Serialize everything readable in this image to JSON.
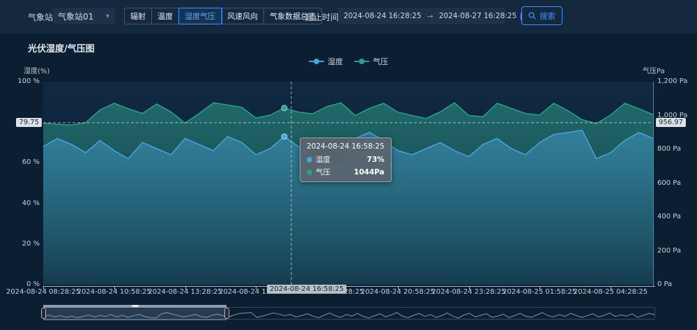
{
  "header": {
    "station_label": "气象站",
    "station_select": {
      "value": "气象站01"
    },
    "nav_buttons": [
      {
        "key": "radiation",
        "label": "辐射",
        "active": false
      },
      {
        "key": "temperature",
        "label": "温度",
        "active": false
      },
      {
        "key": "humidity-pressure",
        "label": "湿度气压",
        "active": true
      },
      {
        "key": "wind",
        "label": "风速风向",
        "active": false
      },
      {
        "key": "overview",
        "label": "气象数据总览",
        "active": false
      }
    ],
    "range_label": "起止时间",
    "date_start": "2024-08-24 16:28:25",
    "date_end": "2024-08-27 16:28:25",
    "search_label": "搜索"
  },
  "colors": {
    "humidity": "#4aa4dc",
    "pressure": "#2f9f8c",
    "accent_blue": "#3e8fff"
  },
  "chart_data": {
    "type": "line",
    "title": "光伏湿度/气压图",
    "x_start": "2024-08-24 08:28:25",
    "x_interval_minutes": 30,
    "x_tick_labels": [
      "2024-08-24 08:28:25",
      "2024-08-24 10:58:25",
      "2024-08-24 13:28:25",
      "2024-08-24 15:58:25",
      "2024-08-24 18:28:25",
      "2024-08-24 20:58:25",
      "2024-08-24 23:28:25",
      "2024-08-25 01:58:25",
      "2024-08-25 04:28:25"
    ],
    "x_tick_indices": [
      0,
      5,
      10,
      15,
      20,
      25,
      30,
      35,
      40
    ],
    "left_axis": {
      "name": "湿度(%)",
      "min": 0,
      "max": 100,
      "labels": [
        "100 %",
        "80 %",
        "60 %",
        "40 %",
        "20 %",
        "0 %"
      ],
      "values": [
        100,
        80,
        60,
        40,
        20,
        0
      ]
    },
    "right_axis": {
      "name": "气压Pa",
      "min": 0,
      "max": 1200,
      "labels": [
        "1,200 Pa",
        "1,000 Pa",
        "800 Pa",
        "600 Pa",
        "400 Pa",
        "200 Pa",
        "0 Pa"
      ],
      "values": [
        1200,
        1000,
        800,
        600,
        400,
        200,
        0
      ]
    },
    "series": [
      {
        "name": "湿度",
        "key": "humidity",
        "axis": "left",
        "color": "#4aa4dc",
        "values": [
          68,
          72,
          69,
          65,
          71,
          66,
          62,
          70,
          67,
          64,
          72,
          69,
          66,
          73,
          70,
          64,
          67,
          73,
          68,
          63,
          60,
          58,
          72,
          75,
          71,
          66,
          64,
          67,
          70,
          66,
          63,
          69,
          72,
          67,
          64,
          70,
          74,
          75,
          76,
          62,
          65,
          71,
          75,
          72
        ]
      },
      {
        "name": "气压",
        "key": "pressure",
        "axis": "right",
        "color": "#2f9f8c",
        "values": [
          955,
          948,
          943,
          958,
          1032,
          1072,
          1040,
          1012,
          1068,
          1022,
          955,
          1012,
          1075,
          1062,
          1048,
          985,
          1002,
          1044,
          1020,
          1010,
          1052,
          1075,
          1000,
          1042,
          1072,
          1020,
          1000,
          982,
          1022,
          1075,
          1000,
          992,
          1072,
          1042,
          1012,
          1002,
          1072,
          1028,
          975,
          952,
          1002,
          1072,
          1040,
          1005
        ]
      }
    ],
    "highlight_index": 17,
    "crosshair": {
      "x_label": "2024-08-24 16:58:25",
      "left_label": "79.75",
      "right_label": "956.97"
    },
    "tooltip": {
      "title": "2024-08-24 16:58:25",
      "rows": [
        {
          "key": "humidity",
          "name": "湿度",
          "value": "73%",
          "color": "#4aa4dc"
        },
        {
          "key": "pressure",
          "name": "气压",
          "value": "1044Pa",
          "color": "#2f9f8c"
        }
      ]
    },
    "datazoom": {
      "start_pct": 0,
      "end_pct": 30,
      "preview": [
        62,
        64,
        60,
        63,
        59,
        62,
        58,
        61,
        65,
        60,
        64,
        61,
        66,
        60,
        64,
        59,
        63,
        66,
        61,
        58,
        57,
        68,
        71,
        67,
        63,
        60,
        63,
        66,
        61,
        59,
        64,
        67,
        63,
        60,
        65,
        69,
        70,
        71,
        59,
        62,
        66,
        70,
        67,
        63,
        66,
        60,
        63,
        68,
        62,
        58,
        64,
        70,
        63,
        59,
        66,
        62,
        69,
        61,
        57,
        63,
        68,
        60,
        65,
        71,
        62,
        58,
        64,
        69,
        61,
        66,
        59,
        63,
        70,
        62,
        57,
        65,
        69,
        60,
        64,
        68,
        59,
        62,
        67,
        58,
        63,
        69,
        62,
        59,
        65,
        71,
        63,
        60,
        66,
        61,
        69,
        64,
        59,
        63,
        68,
        60,
        64,
        70,
        61,
        65,
        62,
        68,
        59,
        64,
        69,
        66
      ]
    }
  }
}
